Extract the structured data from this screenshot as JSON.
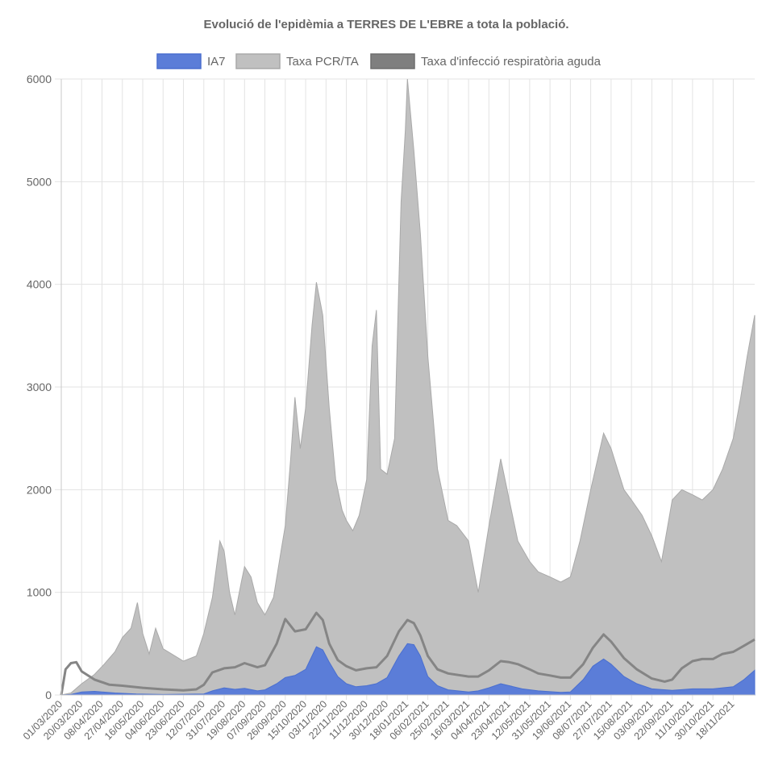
{
  "chart_data": {
    "type": "area",
    "title": "Evolució de l'epidèmia a TERRES DE L'EBRE a tota la població.",
    "xlabel": "",
    "ylabel": "",
    "ylim": [
      0,
      6000
    ],
    "yticks": [
      0,
      1000,
      2000,
      3000,
      4000,
      5000,
      6000
    ],
    "grid": true,
    "legend_position": "top",
    "categories": [
      "01/03/2020",
      "20/03/2020",
      "08/04/2020",
      "27/04/2020",
      "16/05/2020",
      "04/06/2020",
      "23/06/2020",
      "12/07/2020",
      "31/07/2020",
      "19/08/2020",
      "07/09/2020",
      "26/09/2020",
      "15/10/2020",
      "03/11/2020",
      "22/11/2020",
      "11/12/2020",
      "30/12/2020",
      "18/01/2021",
      "06/02/2021",
      "25/02/2021",
      "16/03/2021",
      "04/04/2021",
      "23/04/2021",
      "12/05/2021",
      "31/05/2021",
      "19/06/2021",
      "08/07/2021",
      "27/07/2021",
      "15/08/2021",
      "03/09/2021",
      "22/09/2021",
      "11/10/2021",
      "30/10/2021",
      "18/11/2021"
    ],
    "x_end": "08/12/2021",
    "series": [
      {
        "name": "IA7",
        "color": "#4a6fcf",
        "fill": "#5b7dd8",
        "points": [
          [
            "01/03/2020",
            0
          ],
          [
            "10/03/2020",
            5
          ],
          [
            "20/03/2020",
            30
          ],
          [
            "01/04/2020",
            35
          ],
          [
            "20/04/2020",
            20
          ],
          [
            "10/05/2020",
            10
          ],
          [
            "04/06/2020",
            5
          ],
          [
            "12/07/2020",
            10
          ],
          [
            "20/07/2020",
            40
          ],
          [
            "31/07/2020",
            70
          ],
          [
            "10/08/2020",
            55
          ],
          [
            "19/08/2020",
            65
          ],
          [
            "31/08/2020",
            40
          ],
          [
            "07/09/2020",
            50
          ],
          [
            "18/09/2020",
            110
          ],
          [
            "26/09/2020",
            170
          ],
          [
            "05/10/2020",
            190
          ],
          [
            "15/10/2020",
            250
          ],
          [
            "25/10/2020",
            470
          ],
          [
            "31/10/2020",
            440
          ],
          [
            "06/11/2020",
            320
          ],
          [
            "14/11/2020",
            180
          ],
          [
            "22/11/2020",
            110
          ],
          [
            "01/12/2020",
            80
          ],
          [
            "11/12/2020",
            90
          ],
          [
            "20/12/2020",
            110
          ],
          [
            "30/12/2020",
            170
          ],
          [
            "10/01/2021",
            380
          ],
          [
            "18/01/2021",
            500
          ],
          [
            "24/01/2021",
            490
          ],
          [
            "30/01/2021",
            380
          ],
          [
            "06/02/2021",
            180
          ],
          [
            "15/02/2021",
            90
          ],
          [
            "25/02/2021",
            50
          ],
          [
            "16/03/2021",
            30
          ],
          [
            "25/03/2021",
            40
          ],
          [
            "04/04/2021",
            70
          ],
          [
            "15/04/2021",
            110
          ],
          [
            "23/04/2021",
            90
          ],
          [
            "05/05/2021",
            60
          ],
          [
            "20/05/2021",
            40
          ],
          [
            "10/06/2021",
            25
          ],
          [
            "19/06/2021",
            30
          ],
          [
            "01/07/2021",
            150
          ],
          [
            "10/07/2021",
            280
          ],
          [
            "20/07/2021",
            350
          ],
          [
            "27/07/2021",
            300
          ],
          [
            "08/08/2021",
            180
          ],
          [
            "20/08/2021",
            110
          ],
          [
            "03/09/2021",
            60
          ],
          [
            "22/09/2021",
            45
          ],
          [
            "11/10/2021",
            60
          ],
          [
            "30/10/2021",
            60
          ],
          [
            "18/11/2021",
            80
          ],
          [
            "28/11/2021",
            150
          ],
          [
            "08/12/2021",
            240
          ]
        ]
      },
      {
        "name": "Taxa PCR/TA",
        "color": "#a9a9a9",
        "fill": "#c0c0c0",
        "points": [
          [
            "01/03/2020",
            0
          ],
          [
            "10/03/2020",
            20
          ],
          [
            "20/03/2020",
            110
          ],
          [
            "01/04/2020",
            200
          ],
          [
            "10/04/2020",
            300
          ],
          [
            "20/04/2020",
            420
          ],
          [
            "27/04/2020",
            560
          ],
          [
            "05/05/2020",
            650
          ],
          [
            "11/05/2020",
            900
          ],
          [
            "16/05/2020",
            600
          ],
          [
            "22/05/2020",
            400
          ],
          [
            "28/05/2020",
            650
          ],
          [
            "04/06/2020",
            450
          ],
          [
            "15/06/2020",
            380
          ],
          [
            "23/06/2020",
            330
          ],
          [
            "05/07/2020",
            380
          ],
          [
            "12/07/2020",
            600
          ],
          [
            "20/07/2020",
            950
          ],
          [
            "27/07/2020",
            1500
          ],
          [
            "31/07/2020",
            1400
          ],
          [
            "05/08/2020",
            1000
          ],
          [
            "10/08/2020",
            780
          ],
          [
            "16/08/2020",
            1100
          ],
          [
            "19/08/2020",
            1250
          ],
          [
            "25/08/2020",
            1150
          ],
          [
            "31/08/2020",
            900
          ],
          [
            "07/09/2020",
            780
          ],
          [
            "15/09/2020",
            950
          ],
          [
            "22/09/2020",
            1400
          ],
          [
            "26/09/2020",
            1650
          ],
          [
            "01/10/2020",
            2300
          ],
          [
            "05/10/2020",
            2900
          ],
          [
            "10/10/2020",
            2400
          ],
          [
            "15/10/2020",
            2800
          ],
          [
            "21/10/2020",
            3600
          ],
          [
            "25/10/2020",
            4020
          ],
          [
            "31/10/2020",
            3700
          ],
          [
            "06/11/2020",
            2800
          ],
          [
            "12/11/2020",
            2100
          ],
          [
            "18/11/2020",
            1800
          ],
          [
            "22/11/2020",
            1700
          ],
          [
            "28/11/2020",
            1600
          ],
          [
            "04/12/2020",
            1750
          ],
          [
            "11/12/2020",
            2100
          ],
          [
            "16/12/2020",
            3400
          ],
          [
            "20/12/2020",
            3750
          ],
          [
            "24/12/2020",
            2200
          ],
          [
            "30/12/2020",
            2150
          ],
          [
            "06/01/2021",
            2500
          ],
          [
            "12/01/2021",
            4800
          ],
          [
            "16/01/2021",
            5500
          ],
          [
            "18/01/2021",
            6000
          ],
          [
            "24/01/2021",
            5300
          ],
          [
            "30/01/2021",
            4500
          ],
          [
            "06/02/2021",
            3300
          ],
          [
            "15/02/2021",
            2200
          ],
          [
            "25/02/2021",
            1700
          ],
          [
            "05/03/2021",
            1650
          ],
          [
            "16/03/2021",
            1500
          ],
          [
            "25/03/2021",
            1000
          ],
          [
            "04/04/2021",
            1650
          ],
          [
            "15/04/2021",
            2300
          ],
          [
            "23/04/2021",
            1900
          ],
          [
            "01/05/2021",
            1500
          ],
          [
            "12/05/2021",
            1300
          ],
          [
            "20/05/2021",
            1200
          ],
          [
            "31/05/2021",
            1150
          ],
          [
            "10/06/2021",
            1100
          ],
          [
            "19/06/2021",
            1150
          ],
          [
            "28/06/2021",
            1500
          ],
          [
            "08/07/2021",
            2000
          ],
          [
            "20/07/2021",
            2550
          ],
          [
            "27/07/2021",
            2400
          ],
          [
            "08/08/2021",
            2000
          ],
          [
            "15/08/2021",
            1900
          ],
          [
            "25/08/2021",
            1750
          ],
          [
            "03/09/2021",
            1550
          ],
          [
            "12/09/2021",
            1300
          ],
          [
            "22/09/2021",
            1900
          ],
          [
            "01/10/2021",
            2000
          ],
          [
            "11/10/2021",
            1950
          ],
          [
            "20/10/2021",
            1900
          ],
          [
            "30/10/2021",
            2000
          ],
          [
            "08/11/2021",
            2200
          ],
          [
            "18/11/2021",
            2500
          ],
          [
            "25/11/2021",
            2900
          ],
          [
            "01/12/2021",
            3300
          ],
          [
            "08/12/2021",
            3700
          ]
        ]
      },
      {
        "name": "Taxa d'infecció respiratòria aguda",
        "color": "#858585",
        "fill": "#858585",
        "points": [
          [
            "01/03/2020",
            0
          ],
          [
            "05/03/2020",
            250
          ],
          [
            "10/03/2020",
            310
          ],
          [
            "15/03/2020",
            320
          ],
          [
            "20/03/2020",
            230
          ],
          [
            "01/04/2020",
            150
          ],
          [
            "15/04/2020",
            100
          ],
          [
            "27/04/2020",
            90
          ],
          [
            "16/05/2020",
            70
          ],
          [
            "04/06/2020",
            55
          ],
          [
            "23/06/2020",
            45
          ],
          [
            "05/07/2020",
            55
          ],
          [
            "12/07/2020",
            100
          ],
          [
            "20/07/2020",
            220
          ],
          [
            "31/07/2020",
            260
          ],
          [
            "10/08/2020",
            270
          ],
          [
            "19/08/2020",
            310
          ],
          [
            "31/08/2020",
            270
          ],
          [
            "07/09/2020",
            290
          ],
          [
            "18/09/2020",
            500
          ],
          [
            "26/09/2020",
            740
          ],
          [
            "05/10/2020",
            620
          ],
          [
            "15/10/2020",
            640
          ],
          [
            "25/10/2020",
            800
          ],
          [
            "31/10/2020",
            730
          ],
          [
            "06/11/2020",
            500
          ],
          [
            "14/11/2020",
            340
          ],
          [
            "22/11/2020",
            280
          ],
          [
            "01/12/2020",
            240
          ],
          [
            "11/12/2020",
            260
          ],
          [
            "20/12/2020",
            270
          ],
          [
            "30/12/2020",
            380
          ],
          [
            "10/01/2021",
            620
          ],
          [
            "18/01/2021",
            730
          ],
          [
            "24/01/2021",
            700
          ],
          [
            "30/01/2021",
            580
          ],
          [
            "06/02/2021",
            380
          ],
          [
            "15/02/2021",
            250
          ],
          [
            "25/02/2021",
            210
          ],
          [
            "16/03/2021",
            180
          ],
          [
            "25/03/2021",
            180
          ],
          [
            "04/04/2021",
            240
          ],
          [
            "15/04/2021",
            330
          ],
          [
            "23/04/2021",
            320
          ],
          [
            "01/05/2021",
            300
          ],
          [
            "12/05/2021",
            250
          ],
          [
            "20/05/2021",
            210
          ],
          [
            "31/05/2021",
            190
          ],
          [
            "10/06/2021",
            170
          ],
          [
            "19/06/2021",
            170
          ],
          [
            "01/07/2021",
            300
          ],
          [
            "10/07/2021",
            460
          ],
          [
            "20/07/2021",
            590
          ],
          [
            "27/07/2021",
            520
          ],
          [
            "08/08/2021",
            360
          ],
          [
            "20/08/2021",
            250
          ],
          [
            "03/09/2021",
            160
          ],
          [
            "15/09/2021",
            130
          ],
          [
            "22/09/2021",
            150
          ],
          [
            "01/10/2021",
            260
          ],
          [
            "11/10/2021",
            330
          ],
          [
            "20/10/2021",
            350
          ],
          [
            "30/10/2021",
            350
          ],
          [
            "08/11/2021",
            400
          ],
          [
            "18/11/2021",
            420
          ],
          [
            "28/11/2021",
            480
          ],
          [
            "08/12/2021",
            540
          ]
        ]
      }
    ]
  }
}
